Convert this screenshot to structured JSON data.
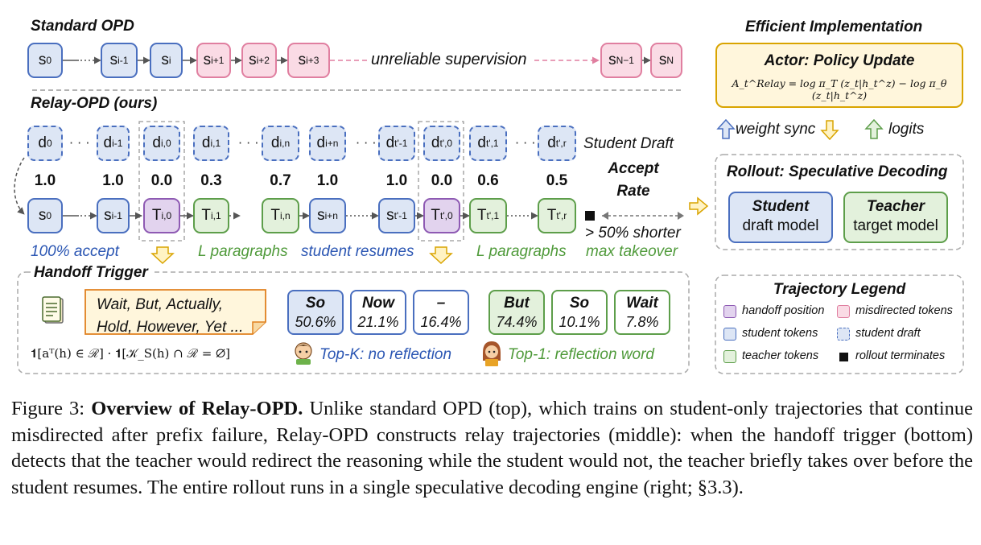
{
  "standard": {
    "title": "Standard OPD",
    "tokens": [
      {
        "b": "s",
        "s": "0"
      },
      {
        "b": "s",
        "s": "i-1"
      },
      {
        "b": "s",
        "s": "i"
      },
      {
        "b": "s",
        "s": "i+1"
      },
      {
        "b": "s",
        "s": "i+2"
      },
      {
        "b": "s",
        "s": "i+3"
      },
      {
        "b": "s",
        "s": "N−1"
      },
      {
        "b": "s",
        "s": "N"
      }
    ],
    "unreliable": "unreliable supervision"
  },
  "relay": {
    "title": "Relay-OPD (ours)",
    "drafts": [
      {
        "b": "d",
        "s": "0"
      },
      {
        "b": "d",
        "s": "i-1"
      },
      {
        "b": "d",
        "s": "i,0"
      },
      {
        "b": "d",
        "s": "i,1"
      },
      {
        "b": "d",
        "s": "i,n"
      },
      {
        "b": "d",
        "s": "i+n"
      },
      {
        "b": "d",
        "s": "t'-1"
      },
      {
        "b": "d",
        "s": "t',0"
      },
      {
        "b": "d",
        "s": "t',1"
      },
      {
        "b": "d",
        "s": "t',r"
      }
    ],
    "student_draft_label": "Student Draft",
    "rates": [
      "1.0",
      "1.0",
      "0.0",
      "0.3",
      "0.7",
      "1.0",
      "1.0",
      "0.0",
      "0.6",
      "0.5"
    ],
    "accept_rate_label": [
      "Accept",
      "Rate"
    ],
    "tokens": [
      {
        "b": "s",
        "s": "0"
      },
      {
        "b": "s",
        "s": "i-1"
      },
      {
        "b": "T",
        "s": "i,0"
      },
      {
        "b": "T",
        "s": "i,1"
      },
      {
        "b": "T",
        "s": "i,n"
      },
      {
        "b": "s",
        "s": "i+n"
      },
      {
        "b": "s",
        "s": "t'-1"
      },
      {
        "b": "T",
        "s": "t',0"
      },
      {
        "b": "T",
        "s": "t',1"
      },
      {
        "b": "T",
        "s": "t',r"
      }
    ],
    "shorter": "> 50% shorter",
    "bottom_labels": {
      "accept": "100% accept",
      "l_para_1": "L paragraphs",
      "resumes": "student resumes",
      "l_para_2": "L paragraphs",
      "takeover": "max takeover"
    }
  },
  "handoff": {
    "title": "Handoff Trigger",
    "words_line1": "Wait, But,  Actually,",
    "words_line2": "Hold, However, Yet ...",
    "formula": "𝟏[aᵀ(h) ∈ ℛ] · 𝟏[𝒦_S(h) ∩ ℛ = ∅]",
    "student_candidates": [
      {
        "word": "So",
        "pct": "50.6%"
      },
      {
        "word": "Now",
        "pct": "21.1%"
      },
      {
        "word": "–",
        "pct": "16.4%"
      }
    ],
    "teacher_candidates": [
      {
        "word": "But",
        "pct": "74.4%"
      },
      {
        "word": "So",
        "pct": "10.1%"
      },
      {
        "word": "Wait",
        "pct": "7.8%"
      }
    ],
    "topk_label": "Top-K: no reflection",
    "top1_label": "Top-1: reflection word"
  },
  "efficient": {
    "title": "Efficient Implementation",
    "actor_title": "Actor: Policy Update",
    "actor_formula": "A_t^Relay = log π_T (z_t|h_t^z) − log π_θ (z_t|h_t^z)",
    "weight_sync": "weight sync",
    "logits": "logits",
    "rollout_title": "Rollout: Speculative Decoding",
    "student_name": "Student",
    "student_sub": "draft model",
    "teacher_name": "Teacher",
    "teacher_sub": "target model"
  },
  "legend": {
    "title": "Trajectory Legend",
    "items": [
      "handoff position",
      "misdirected tokens",
      "student tokens",
      "student draft",
      "teacher tokens",
      "rollout terminates"
    ]
  },
  "caption": {
    "fig": "Figure 3:",
    "bold": "Overview of Relay-OPD.",
    "text": "Unlike standard OPD (top), which trains on student-only trajectories that continue misdirected after prefix failure, Relay-OPD constructs relay trajectories (middle): when the handoff trigger (bottom) detects that the teacher would redirect the reasoning while the student would not, the teacher briefly takes over before the student resumes. The entire rollout runs in a single speculative decoding engine (right; §3.3)."
  },
  "colors": {
    "student": "#4a6fbf",
    "teacher": "#5d9e4a",
    "handoff": "#8e5ab3",
    "misdirected": "#e07fa0",
    "accent": "#d9a400"
  }
}
